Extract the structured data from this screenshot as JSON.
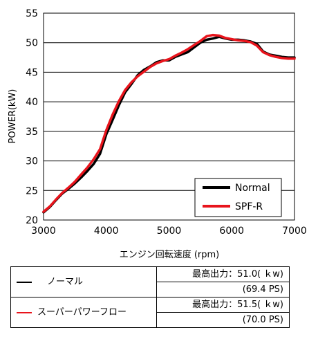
{
  "chart_data": {
    "type": "line",
    "xlabel": "エンジン回転速度 (rpm)",
    "ylabel": "POWER(kW)",
    "xlim": [
      3000,
      7000
    ],
    "ylim": [
      20,
      55
    ],
    "xticks": [
      3000,
      4000,
      5000,
      6000,
      7000
    ],
    "yticks": [
      20,
      25,
      30,
      35,
      40,
      45,
      50,
      55
    ],
    "grid": true,
    "legend_position": "bottom-right",
    "series": [
      {
        "name": "Normal",
        "color": "#000000",
        "x": [
          3000,
          3100,
          3200,
          3300,
          3400,
          3500,
          3600,
          3700,
          3800,
          3900,
          4000,
          4100,
          4200,
          4300,
          4400,
          4500,
          4600,
          4700,
          4800,
          4900,
          5000,
          5100,
          5200,
          5300,
          5400,
          5500,
          5600,
          5700,
          5800,
          5900,
          6000,
          6100,
          6200,
          6300,
          6400,
          6500,
          6600,
          6700,
          6800,
          6900,
          7000
        ],
        "y": [
          21.3,
          22.2,
          23.4,
          24.5,
          25.3,
          26.2,
          27.2,
          28.3,
          29.5,
          31.2,
          34.5,
          36.9,
          39.4,
          41.6,
          43.0,
          44.5,
          45.4,
          46.0,
          46.7,
          47.0,
          47.0,
          47.6,
          48.0,
          48.4,
          49.2,
          50.0,
          50.5,
          50.7,
          51.0,
          50.7,
          50.5,
          50.5,
          50.4,
          50.2,
          49.8,
          48.5,
          48.0,
          47.8,
          47.6,
          47.5,
          47.5
        ]
      },
      {
        "name": "SPF-R",
        "color": "#e8141c",
        "x": [
          3000,
          3100,
          3200,
          3300,
          3400,
          3500,
          3600,
          3700,
          3800,
          3900,
          4000,
          4100,
          4200,
          4300,
          4400,
          4500,
          4600,
          4700,
          4800,
          4900,
          5000,
          5100,
          5200,
          5300,
          5400,
          5500,
          5600,
          5700,
          5800,
          5900,
          6000,
          6100,
          6200,
          6300,
          6400,
          6500,
          6600,
          6700,
          6800,
          6900,
          7000
        ],
        "y": [
          21.4,
          22.3,
          23.5,
          24.6,
          25.5,
          26.5,
          27.7,
          28.9,
          30.3,
          32.0,
          35.2,
          37.8,
          40.1,
          42.0,
          43.3,
          44.3,
          45.1,
          45.9,
          46.5,
          46.9,
          47.2,
          47.8,
          48.3,
          48.9,
          49.6,
          50.3,
          51.1,
          51.3,
          51.2,
          50.8,
          50.6,
          50.4,
          50.3,
          50.1,
          49.5,
          48.4,
          47.9,
          47.6,
          47.4,
          47.3,
          47.3
        ]
      }
    ]
  },
  "spec_table": {
    "rows": [
      {
        "name": "ノーマル",
        "line_color": "#000000",
        "max_output": "最高出力：51.0( ｋw)",
        "ps": "(69.4 PS)"
      },
      {
        "name": "スーパーパワーフロー",
        "line_color": "#e8141c",
        "max_output": "最高出力：51.5( ｋw)",
        "ps": "(70.0 PS)"
      }
    ]
  }
}
